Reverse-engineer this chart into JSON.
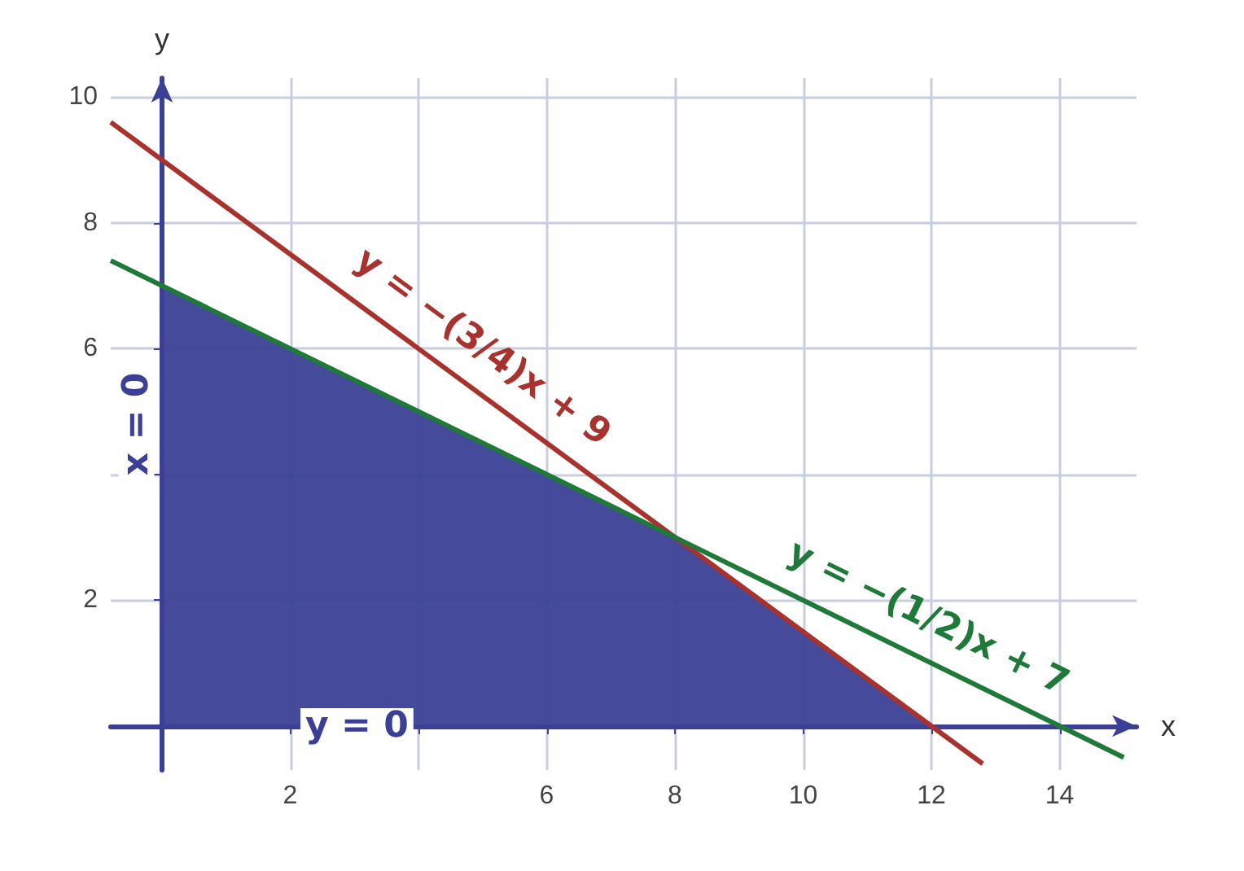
{
  "chart_data": {
    "type": "line",
    "xlabel": "x",
    "ylabel": "y",
    "xlim": [
      -0.8,
      15.2
    ],
    "ylim": [
      -0.7,
      10.3
    ],
    "xticks": [
      {
        "value": 0,
        "label": null
      },
      2,
      {
        "value": 4,
        "label": null
      },
      6,
      8,
      10,
      12,
      14
    ],
    "yticks": [
      {
        "value": 0,
        "label": null
      },
      2,
      {
        "value": 4,
        "label": null
      },
      6,
      8,
      10
    ],
    "grid": true,
    "marker": "none",
    "line_style": "solid",
    "series": [
      {
        "type": "area",
        "color": "#3b4096",
        "x": [
          0,
          8,
          12
        ],
        "values": [
          7,
          3,
          0
        ]
      },
      {
        "color": "#a8322e",
        "x": [
          -0.8,
          12.8
        ],
        "values": [
          9.6,
          -0.6
        ]
      },
      {
        "color": "#1f7a3a",
        "x": [
          -0.8,
          15
        ],
        "values": [
          7.4,
          -0.5
        ]
      }
    ],
    "annotations": [
      "y = −(3/4)x + 9",
      "y = −(1/2)x + 7",
      "x = 0",
      "y = 0"
    ]
  }
}
